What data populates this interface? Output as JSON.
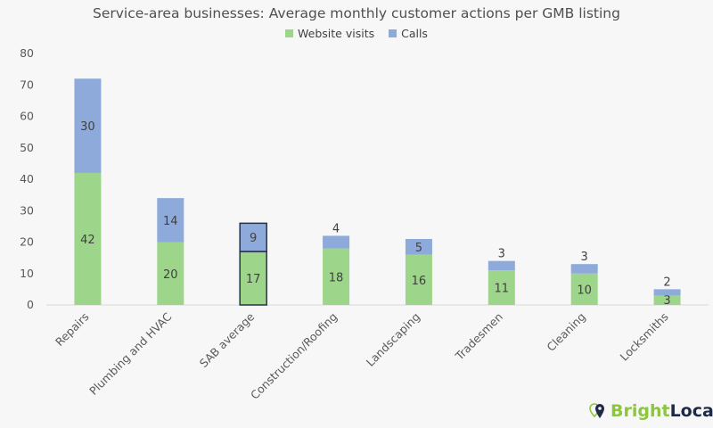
{
  "chart_data": {
    "type": "bar",
    "stacked": true,
    "title": "Service-area businesses: Average monthly customer actions per GMB listing",
    "categories": [
      "Repairs",
      "Plumbing and HVAC",
      "SAB average",
      "Construction/Roofing",
      "Landscaping",
      "Tradesmen",
      "Cleaning",
      "Locksmiths"
    ],
    "series": [
      {
        "name": "Website visits",
        "color": "#9dd68a",
        "values": [
          42,
          20,
          17,
          18,
          16,
          11,
          10,
          3
        ]
      },
      {
        "name": "Calls",
        "color": "#8eaadb",
        "values": [
          30,
          14,
          9,
          4,
          5,
          3,
          3,
          2
        ]
      }
    ],
    "highlighted_category": "SAB average",
    "ylim": [
      0,
      80
    ],
    "yticks": [
      0,
      10,
      20,
      30,
      40,
      50,
      60,
      70,
      80
    ],
    "grid": false,
    "legend": "top"
  },
  "logo": {
    "part1": "Bright",
    "part2": "Local",
    "color1": "#8cc63f",
    "color2": "#1f2a44"
  }
}
